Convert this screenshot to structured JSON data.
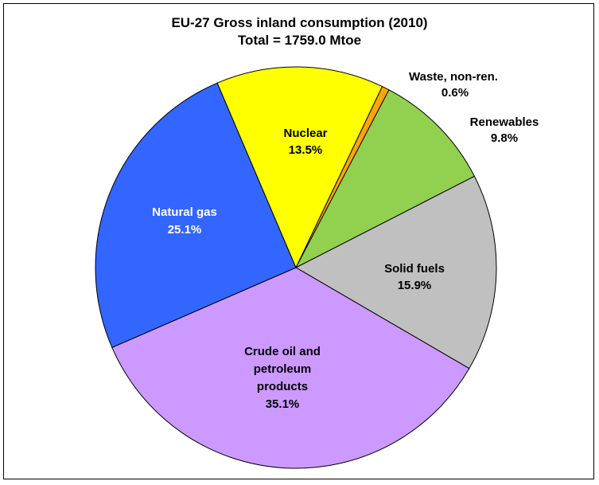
{
  "chart_data": {
    "type": "pie",
    "title": "EU-27 Gross inland consumption  (2010)",
    "subtitle": "Total = 1759.0 Mtoe",
    "slices": [
      {
        "label": "Waste, non-ren.",
        "value_text": "0.6%",
        "value": 0.6,
        "color": "#FFA500",
        "text_color": "#000000"
      },
      {
        "label": "Renewables",
        "value_text": "9.8%",
        "value": 9.8,
        "color": "#92D050",
        "text_color": "#000000"
      },
      {
        "label": "Solid fuels",
        "value_text": "15.9%",
        "value": 15.9,
        "color": "#C0C0C0",
        "text_color": "#000000"
      },
      {
        "label": "Crude oil and petroleum products",
        "value_text": "35.1%",
        "value": 35.1,
        "color": "#CC99FF",
        "text_color": "#000000"
      },
      {
        "label": "Natural gas",
        "value_text": "25.1%",
        "value": 25.1,
        "color": "#3366FF",
        "text_color": "#ffffff"
      },
      {
        "label": "Nuclear",
        "value_text": "13.5%",
        "value": 13.5,
        "color": "#FFFF00",
        "text_color": "#000000"
      }
    ]
  }
}
